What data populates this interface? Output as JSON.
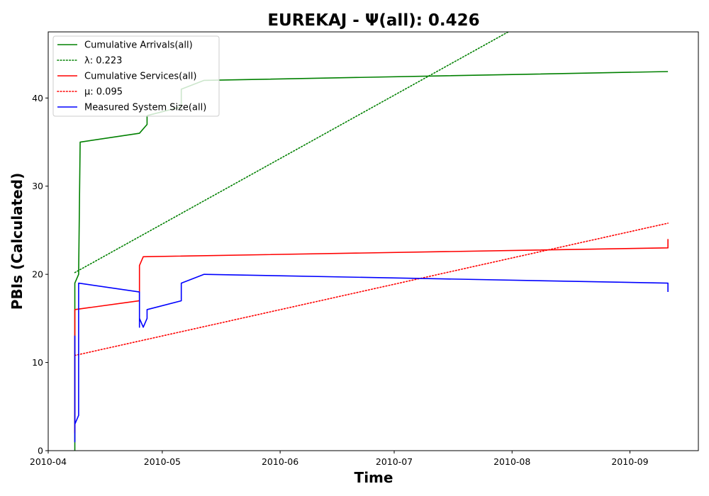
{
  "chart_data": {
    "type": "line",
    "title": "EUREKAJ -  Ψ(all): 0.426",
    "xlabel": "Time",
    "ylabel": "PBIs (Calculated)",
    "x_range": [
      "2010-04-01",
      "2010-09-19"
    ],
    "ylim": [
      0,
      47.5
    ],
    "x_ticks": [
      {
        "date": "2010-04-01",
        "label": "2010-04"
      },
      {
        "date": "2010-05-01",
        "label": "2010-05"
      },
      {
        "date": "2010-06-01",
        "label": "2010-06"
      },
      {
        "date": "2010-07-01",
        "label": "2010-07"
      },
      {
        "date": "2010-08-01",
        "label": "2010-08"
      },
      {
        "date": "2010-09-01",
        "label": "2010-09"
      }
    ],
    "y_ticks": [
      0,
      10,
      20,
      30,
      40
    ],
    "grid": false,
    "legend_position": "top-left",
    "series": [
      {
        "name": "Cumulative Arrivals(all)",
        "color": "#008000",
        "style": "solid",
        "points": [
          [
            "2010-04-08",
            0
          ],
          [
            "2010-04-08",
            19
          ],
          [
            "2010-04-09",
            20
          ],
          [
            "2010-04-09.4",
            35
          ],
          [
            "2010-04-25",
            36
          ],
          [
            "2010-04-27",
            37
          ],
          [
            "2010-04-27",
            38
          ],
          [
            "2010-05-06",
            39
          ],
          [
            "2010-05-06",
            41
          ],
          [
            "2010-05-12",
            42
          ],
          [
            "2010-09-11",
            43
          ]
        ]
      },
      {
        "name": "λ: 0.223",
        "color": "#008000",
        "style": "dotted",
        "points": [
          [
            "2010-04-08",
            20.2
          ],
          [
            "2010-07-31",
            47.5
          ]
        ]
      },
      {
        "name": "Cumulative Services(all)",
        "color": "#ff0000",
        "style": "solid",
        "points": [
          [
            "2010-04-08",
            2
          ],
          [
            "2010-04-08",
            13
          ],
          [
            "2010-04-08",
            16
          ],
          [
            "2010-04-25",
            17
          ],
          [
            "2010-04-25",
            21
          ],
          [
            "2010-04-26",
            22
          ],
          [
            "2010-09-11",
            23
          ],
          [
            "2010-09-11",
            24
          ]
        ]
      },
      {
        "name": "μ: 0.095",
        "color": "#ff0000",
        "style": "dotted",
        "points": [
          [
            "2010-04-08",
            10.8
          ],
          [
            "2010-09-11",
            25.8
          ]
        ]
      },
      {
        "name": "Measured System Size(all)",
        "color": "#0000ff",
        "style": "solid",
        "points": [
          [
            "2010-04-08",
            7
          ],
          [
            "2010-04-08",
            13
          ],
          [
            "2010-04-08",
            1
          ],
          [
            "2010-04-08",
            3
          ],
          [
            "2010-04-09",
            4
          ],
          [
            "2010-04-09",
            19
          ],
          [
            "2010-04-25",
            18
          ],
          [
            "2010-04-25",
            14
          ],
          [
            "2010-04-25",
            15
          ],
          [
            "2010-04-26",
            14
          ],
          [
            "2010-04-27",
            15
          ],
          [
            "2010-04-27",
            16
          ],
          [
            "2010-05-06",
            17
          ],
          [
            "2010-05-06",
            19
          ],
          [
            "2010-05-12",
            20
          ],
          [
            "2010-09-11",
            19
          ],
          [
            "2010-09-11",
            18
          ]
        ]
      }
    ]
  }
}
